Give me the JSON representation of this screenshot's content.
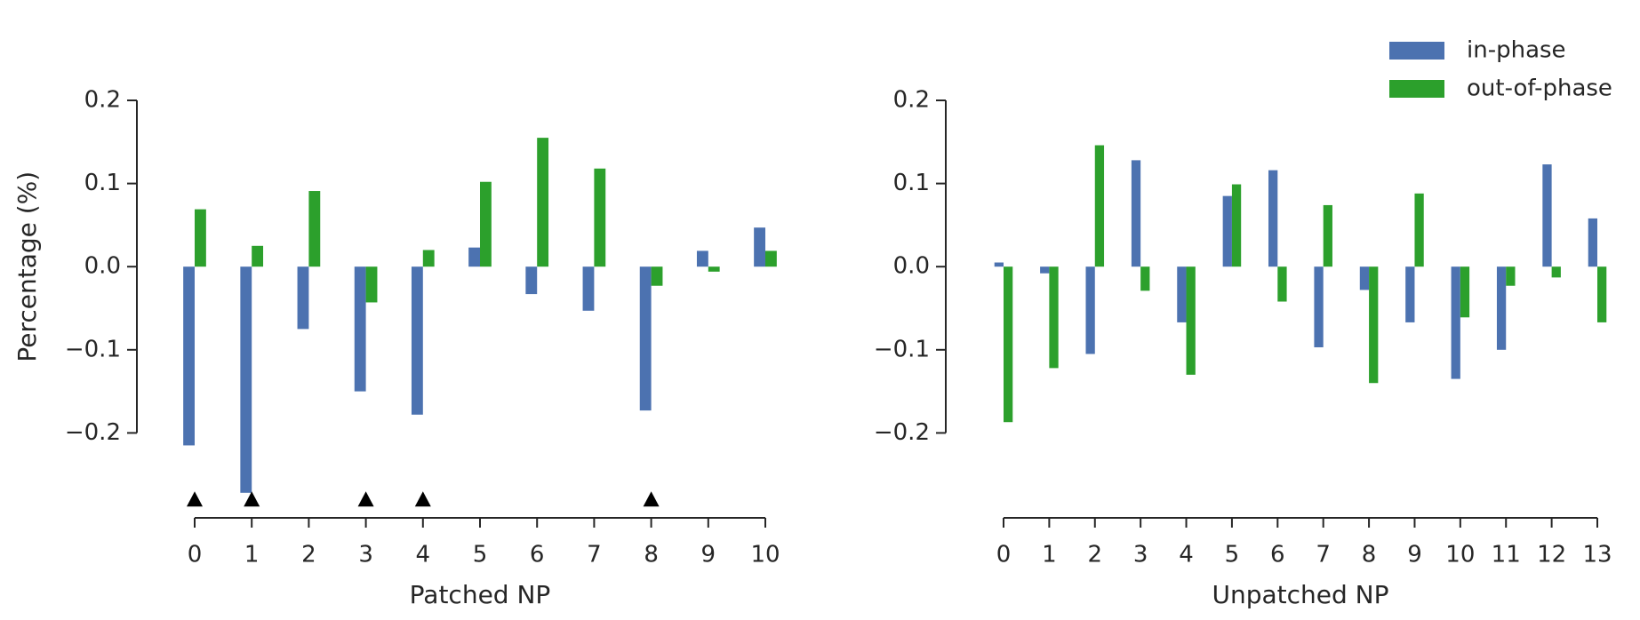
{
  "chart_data": [
    {
      "type": "bar",
      "x_label": "Patched NP",
      "y_label": "Percentage (%)",
      "categories": [
        "0",
        "1",
        "2",
        "3",
        "4",
        "5",
        "6",
        "7",
        "8",
        "9",
        "10"
      ],
      "series": [
        {
          "color": "#4c72b0",
          "values": [
            -0.215,
            -0.272,
            -0.075,
            -0.15,
            -0.178,
            0.023,
            -0.033,
            -0.053,
            -0.173,
            0.019,
            0.047
          ]
        },
        {
          "color": "#2ca02c",
          "values": [
            0.069,
            0.025,
            0.091,
            -0.043,
            0.02,
            0.102,
            0.155,
            0.118,
            -0.023,
            -0.006,
            0.019
          ]
        }
      ],
      "markers": {
        "x": [
          0,
          1,
          3,
          4,
          8
        ],
        "y": [
          -0.28,
          -0.28,
          -0.28,
          -0.28,
          -0.28
        ],
        "color": "#000000"
      },
      "ylim": [
        -0.3,
        0.2
      ],
      "yticks": [
        {
          "value": -0.2,
          "label": "−0.2"
        },
        {
          "value": -0.1,
          "label": "−0.1"
        },
        {
          "value": 0,
          "label": "0.0"
        },
        0.1,
        0.2
      ]
    },
    {
      "type": "bar",
      "x_label": "Unpatched NP",
      "categories": [
        "0",
        "1",
        "2",
        "3",
        "4",
        "5",
        "6",
        "7",
        "8",
        "9",
        "10",
        "11",
        "12",
        "13"
      ],
      "series": [
        {
          "name": "in-phase",
          "color": "#4c72b0",
          "values": [
            0.005,
            -0.008,
            -0.105,
            0.128,
            -0.067,
            0.085,
            0.116,
            -0.097,
            -0.028,
            -0.067,
            -0.135,
            -0.1,
            0.123,
            0.058
          ]
        },
        {
          "name": "out-of-phase",
          "color": "#2ca02c",
          "values": [
            -0.187,
            -0.122,
            0.146,
            -0.029,
            -0.13,
            0.099,
            -0.042,
            0.074,
            -0.14,
            0.088,
            -0.061,
            -0.023,
            -0.013,
            -0.067
          ]
        }
      ],
      "ylim": [
        -0.3,
        0.2
      ],
      "yticks": [
        {
          "value": -0.2,
          "label": "−0.2"
        },
        {
          "value": -0.1,
          "label": "−0.1"
        },
        {
          "value": 0,
          "label": "0.0"
        },
        0.1,
        0.2
      ],
      "legend": "upper right"
    }
  ]
}
